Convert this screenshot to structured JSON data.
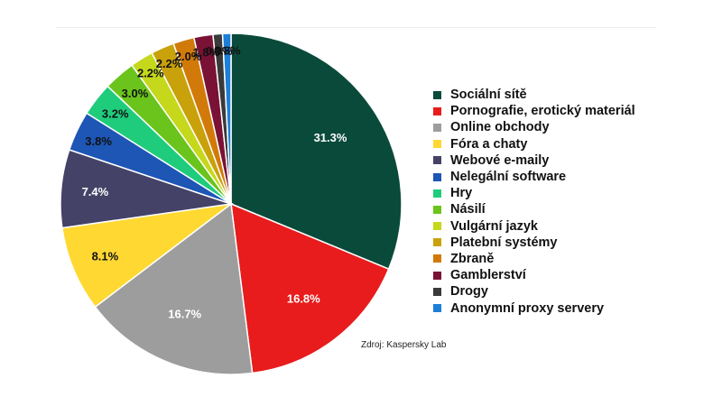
{
  "chart_data": {
    "type": "pie",
    "title": "",
    "source": "Zdroj: Kaspersky Lab",
    "legend_position": "right",
    "slices": [
      {
        "label": "Sociální sítě",
        "value": 31.3,
        "value_label": "31.3%",
        "color": "#0a4a3a"
      },
      {
        "label": "Pornografie, erotický materiál",
        "value": 16.8,
        "value_label": "16.8%",
        "color": "#e81c1c"
      },
      {
        "label": "Online obchody",
        "value": 16.7,
        "value_label": "16.7%",
        "color": "#9d9d9d"
      },
      {
        "label": "Fóra a chaty",
        "value": 8.1,
        "value_label": "8.1%",
        "color": "#ffd832"
      },
      {
        "label": "Webové e-maily",
        "value": 7.4,
        "value_label": "7.4%",
        "color": "#454268"
      },
      {
        "label": "Nelegální software",
        "value": 3.8,
        "value_label": "3.8%",
        "color": "#1d56b5"
      },
      {
        "label": "Hry",
        "value": 3.2,
        "value_label": "3.2%",
        "color": "#1fcc7c"
      },
      {
        "label": "Násilí",
        "value": 3.0,
        "value_label": "3.0%",
        "color": "#6ac41c"
      },
      {
        "label": "Vulgární jazyk",
        "value": 2.2,
        "value_label": "2.2%",
        "color": "#c5d81c"
      },
      {
        "label": "Platební systémy",
        "value": 2.2,
        "value_label": "2.2%",
        "color": "#c9a10a"
      },
      {
        "label": "Zbraně",
        "value": 2.0,
        "value_label": "2.0%",
        "color": "#d17a0a"
      },
      {
        "label": "Gamblerství",
        "value": 1.8,
        "value_label": "1.8%",
        "color": "#7a1236"
      },
      {
        "label": "Drogy",
        "value": 0.9,
        "value_label": "0.9%",
        "color": "#3a3a3a"
      },
      {
        "label": "Anonymní proxy servery",
        "value": 0.8,
        "value_label": "0.8%",
        "color": "#1d7fd8"
      }
    ]
  }
}
